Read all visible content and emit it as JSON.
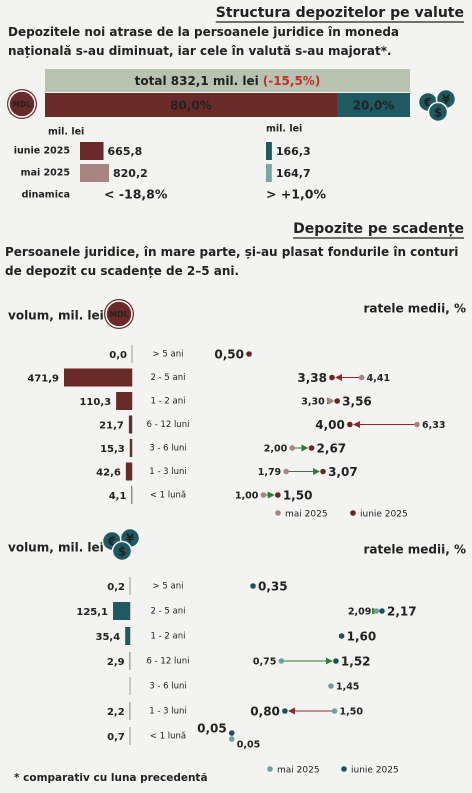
{
  "currency_structure": {
    "title": "Structura depozitelor pe valute",
    "subtitle": "Depozitele noi atrase de la persoanele juridice în moneda națională s-au diminuat, iar cele în valută s-au majorat*.",
    "total": {
      "value": 832.1,
      "label": "total 832,1 mil. lei"
    },
    "total_change": {
      "value": -15.5,
      "label": "(-15,5%)"
    },
    "total_color": "#b8c2b0",
    "shares": {
      "values": [
        80.0,
        20.0
      ],
      "value_labels": [
        "80,0%",
        "20,0%"
      ],
      "colors": [
        "#6b2a2a",
        "#1f5a63"
      ]
    },
    "icon_mdl": "MDL",
    "icon_fx": [
      "€",
      "¥",
      "$"
    ],
    "periods": [
      "iunie 2025",
      "mai 2025"
    ],
    "dynamics_label": "dinamica",
    "mdl": {
      "unit": "mil. lei",
      "values": [
        665.8,
        820.2
      ],
      "value_labels": [
        "665,8",
        "820,2"
      ],
      "colors": [
        "#6b2a2a",
        "#a9857f"
      ],
      "dynamics": {
        "value": -18.8,
        "label": "< -18,8%"
      },
      "dynamics_color": "#c0302b"
    },
    "fx": {
      "unit": "mil. lei",
      "values": [
        166.3,
        164.7
      ],
      "value_labels": [
        "166,3",
        "164,7"
      ],
      "colors": [
        "#1f5a63",
        "#7aa5a5"
      ],
      "dynamics": {
        "value": 1.0,
        "label": "> +1,0%"
      },
      "dynamics_color": "#2e7d32"
    }
  },
  "maturity": {
    "title": "Depozite pe scadențe",
    "subtitle": "Persoanele juridice, în mare parte, și-au plasat fondurile în conturi de depozit cu scadențe de 2–5 ani.",
    "panels": [
      {
        "icon": "MDL",
        "volume_label": "volum, mil. lei",
        "rates_label": "ratele medii, %",
        "categories": [
          "> 5 ani",
          "2 - 5 ani",
          "1 - 2 ani",
          "6 - 12 luni",
          "3 - 6 luni",
          "1 - 3 luni",
          "< 1 lună"
        ],
        "volumes": [
          0.0,
          471.9,
          110.3,
          21.7,
          15.3,
          42.6,
          4.1
        ],
        "volume_labels": [
          "0,0",
          "471,9",
          "110,3",
          "21,7",
          "15,3",
          "42,6",
          "4,1"
        ],
        "bar_color": "#6b2a2a",
        "legend": [
          "mai 2025",
          "iunie 2025"
        ],
        "series": [
          {
            "name": "mai 2025",
            "color": "#a9857f",
            "values": [
              null,
              4.41,
              3.3,
              6.33,
              2.0,
              1.79,
              1.0
            ],
            "value_labels": [
              null,
              "4,41",
              "3,30",
              "6,33",
              "2,00",
              "1,79",
              "1,00"
            ]
          },
          {
            "name": "iunie 2025",
            "color": "#6b2424",
            "values": [
              0.5,
              3.38,
              3.56,
              4.0,
              2.67,
              3.07,
              1.5
            ],
            "value_labels": [
              "0,50",
              "3,38",
              "3,56",
              "4,00",
              "2,67",
              "3,07",
              "1,50"
            ]
          }
        ]
      },
      {
        "icon": [
          "€",
          "¥",
          "$"
        ],
        "volume_label": "volum, mil. lei",
        "rates_label": "ratele medii, %",
        "categories": [
          "> 5 ani",
          "2 - 5 ani",
          "1 - 2 ani",
          "6 - 12 luni",
          "3 - 6 luni",
          "1 - 3 luni",
          "< 1 lună"
        ],
        "volumes": [
          0.2,
          125.1,
          35.4,
          2.9,
          null,
          2.2,
          0.7
        ],
        "volume_labels": [
          "0,2",
          "125,1",
          "35,4",
          "2,9",
          null,
          "2,2",
          "0,7"
        ],
        "bar_color": "#1f5a63",
        "legend": [
          "mai 2025",
          "iunie 2025"
        ],
        "series": [
          {
            "name": "mai 2025",
            "color": "#6fa0a0",
            "values": [
              null,
              2.09,
              null,
              0.75,
              1.45,
              1.5,
              0.05
            ],
            "value_labels": [
              null,
              "2,09",
              null,
              "0,75",
              "1,45",
              "1,50",
              "0,05"
            ]
          },
          {
            "name": "iunie 2025",
            "color": "#1f4f58",
            "values": [
              0.35,
              2.17,
              1.6,
              1.52,
              null,
              0.8,
              0.05
            ],
            "value_labels": [
              "0,35",
              "2,17",
              "1,60",
              "1,52",
              null,
              "0,80",
              "0,05"
            ]
          }
        ]
      }
    ]
  },
  "footnote": "* comparativ cu luna precedentă"
}
